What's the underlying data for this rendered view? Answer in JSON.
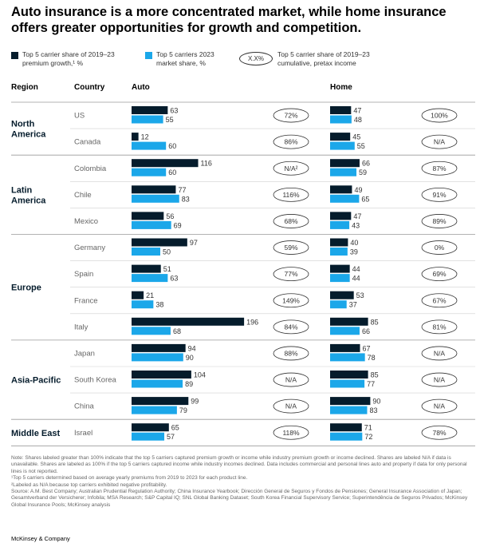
{
  "title": "Auto insurance is a more concentrated market, while home insurance offers greater opportunities for growth and competition.",
  "legend": {
    "growth_label_line1": "Top 5 carrier share of 2019–23",
    "growth_label_line2": "premium growth,¹ %",
    "share_label_line1": "Top 5 carriers 2023",
    "share_label_line2": "market share, %",
    "oval_symbol": "X.X%",
    "income_label_line1": "Top 5 carrier share of 2019–23",
    "income_label_line2": "cumulative, pretax income",
    "colors": {
      "growth": "#051c2c",
      "share": "#1ba7e9"
    }
  },
  "headers": {
    "region": "Region",
    "country": "Country",
    "auto": "Auto",
    "home": "Home"
  },
  "chart_data": {
    "type": "bar",
    "title": "Auto insurance is a more concentrated market, while home insurance offers greater opportunities for growth and competition.",
    "orientation": "horizontal",
    "regions": [
      {
        "name": "North America",
        "rows": [
          {
            "country": "US",
            "auto": {
              "growth": "63",
              "share": "55",
              "income": "72%"
            },
            "home": {
              "growth": "47",
              "share": "48",
              "income": "100%"
            }
          },
          {
            "country": "Canada",
            "auto": {
              "growth": "12",
              "share": "60",
              "income": "86%"
            },
            "home": {
              "growth": "45",
              "share": "55",
              "income": "N/A"
            }
          }
        ]
      },
      {
        "name": "Latin America",
        "rows": [
          {
            "country": "Colombia",
            "auto": {
              "growth": "116",
              "share": "60",
              "income": "N/A²"
            },
            "home": {
              "growth": "66",
              "share": "59",
              "income": "87%"
            }
          },
          {
            "country": "Chile",
            "auto": {
              "growth": "77",
              "share": "83",
              "income": "116%"
            },
            "home": {
              "growth": "49",
              "share": "65",
              "income": "91%"
            }
          },
          {
            "country": "Mexico",
            "auto": {
              "growth": "56",
              "share": "69",
              "income": "68%"
            },
            "home": {
              "growth": "47",
              "share": "43",
              "income": "89%"
            }
          }
        ]
      },
      {
        "name": "Europe",
        "rows": [
          {
            "country": "Germany",
            "auto": {
              "growth": "97",
              "share": "50",
              "income": "59%"
            },
            "home": {
              "growth": "40",
              "share": "39",
              "income": "0%"
            }
          },
          {
            "country": "Spain",
            "auto": {
              "growth": "51",
              "share": "63",
              "income": "77%"
            },
            "home": {
              "growth": "44",
              "share": "44",
              "income": "69%"
            }
          },
          {
            "country": "France",
            "auto": {
              "growth": "21",
              "share": "38",
              "income": "149%"
            },
            "home": {
              "growth": "53",
              "share": "37",
              "income": "67%"
            }
          },
          {
            "country": "Italy",
            "auto": {
              "growth": "196",
              "share": "68",
              "income": "84%"
            },
            "home": {
              "growth": "85",
              "share": "66",
              "income": "81%"
            }
          }
        ]
      },
      {
        "name": "Asia-Pacific",
        "rows": [
          {
            "country": "Japan",
            "auto": {
              "growth": "94",
              "share": "90",
              "income": "88%"
            },
            "home": {
              "growth": "67",
              "share": "78",
              "income": "N/A"
            }
          },
          {
            "country": "South Korea",
            "auto": {
              "growth": "104",
              "share": "89",
              "income": "N/A"
            },
            "home": {
              "growth": "85",
              "share": "77",
              "income": "N/A"
            }
          },
          {
            "country": "China",
            "auto": {
              "growth": "99",
              "share": "79",
              "income": "N/A"
            },
            "home": {
              "growth": "90",
              "share": "83",
              "income": "N/A"
            }
          }
        ]
      },
      {
        "name": "Middle East",
        "rows": [
          {
            "country": "Israel",
            "auto": {
              "growth": "65",
              "share": "57",
              "income": "118%"
            },
            "home": {
              "growth": "71",
              "share": "72",
              "income": "78%"
            }
          }
        ]
      }
    ]
  },
  "notes": [
    "Note: Shares labeled greater than 100% indicate that the top 5 carriers captured premium growth or income while industry premium growth or income declined. Shares are labeled N/A if data is unavailable. Shares are labeled as 100% if the top 5 carriers captured income while industry incomes declined. Data includes commercial and personal lines auto and property if data for only personal lines is not reported.",
    "¹Top 5 carriers determined based on average yearly premiums from 2019 to 2023 for each product line.",
    "²Labeled as N/A because top carriers exhibited negative profitability.",
    "Source: A.M. Best Company; Australian Prudential Regulation Authority; China Insurance Yearbook; Dirección General de Seguros y Fondos de Pensiones; General Insurance Association of Japan; Gesamtverband der Versicherer; Infobila; MSA Research; S&P Capital IQ; SNL Global Banking Dataset; South Korea Financial Supervisory Service; Superintendência de Seguros Privados; McKinsey Global Insurance Pools; McKinsey analysis"
  ],
  "footer": "McKinsey & Company"
}
